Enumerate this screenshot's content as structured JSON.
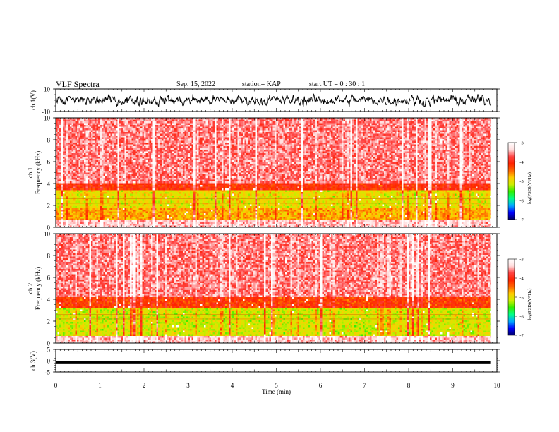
{
  "header": {
    "title": "VLF Spectra",
    "date": "Sep. 15, 2022",
    "station": "station= KAP",
    "start": "start  UT =  0 : 30 : 1"
  },
  "colors": {
    "spectrum_stops": [
      "#000066",
      "#0000ff",
      "#00aaff",
      "#00ff88",
      "#33ee00",
      "#ccee00",
      "#ffcc00",
      "#ff6600",
      "#ff2200",
      "#ff4444",
      "#ffdddd",
      "#ffffff"
    ],
    "trace": "#000000"
  },
  "chart_data": [
    {
      "type": "line",
      "panel": "ch1-waveform",
      "ylabel": "ch.1(V)",
      "ylim": [
        -10,
        10
      ],
      "y_ticks": [
        10,
        -10
      ],
      "x_range_min": [
        0,
        9.85
      ],
      "description_series": "noisy waveform roughly between -7 and +7 V"
    },
    {
      "type": "heatmap",
      "panel": "ch1-spectrogram",
      "ylabel": "ch.1",
      "ylabel2": "Frequency (kHz)",
      "ylim": [
        0,
        10
      ],
      "y_ticks": [
        0,
        2,
        4,
        6,
        8,
        10
      ],
      "x_range_min": [
        0,
        9.85
      ],
      "colorbar": {
        "label": "log(PSD)(V²/Hz)",
        "ticks": [
          -3,
          -4,
          -5,
          -6,
          -7
        ],
        "range": [
          -7,
          -3
        ]
      },
      "bands": [
        {
          "from_khz": 0.0,
          "to_khz": 0.6,
          "level": -3.4
        },
        {
          "from_khz": 0.6,
          "to_khz": 1.8,
          "level": -4.7
        },
        {
          "from_khz": 1.8,
          "to_khz": 3.4,
          "level": -5.0
        },
        {
          "from_khz": 3.4,
          "to_khz": 4.0,
          "level": -4.1
        },
        {
          "from_khz": 4.0,
          "to_khz": 10.0,
          "level": -3.6
        }
      ]
    },
    {
      "type": "heatmap",
      "panel": "ch2-spectrogram",
      "ylabel": "ch.2",
      "ylabel2": "Frequency (kHz)",
      "ylim": [
        0,
        10
      ],
      "y_ticks": [
        0,
        2,
        4,
        6,
        8,
        10
      ],
      "x_range_min": [
        0,
        9.85
      ],
      "colorbar": {
        "label": "log(PSD)(V²/Hz)",
        "ticks": [
          -3,
          -4,
          -5,
          -6,
          -7
        ],
        "range": [
          -7,
          -3
        ]
      },
      "bands": [
        {
          "from_khz": 0.0,
          "to_khz": 0.6,
          "level": -3.4
        },
        {
          "from_khz": 0.6,
          "to_khz": 3.2,
          "level": -5.1
        },
        {
          "from_khz": 3.2,
          "to_khz": 4.2,
          "level": -4.2
        },
        {
          "from_khz": 4.2,
          "to_khz": 10.0,
          "level": -3.6
        }
      ]
    },
    {
      "type": "line",
      "panel": "ch3-waveform",
      "ylabel": "ch.3(V)",
      "ylim": [
        -5,
        5
      ],
      "y_ticks": [
        5,
        0,
        -5
      ],
      "x_range_min": [
        0,
        9.85
      ],
      "level_band": [
        -1.2,
        -0.2
      ]
    }
  ],
  "xaxis": {
    "label": "Time (min)",
    "ticks": [
      0,
      1,
      2,
      3,
      4,
      5,
      6,
      7,
      8,
      9,
      10
    ],
    "range": [
      0,
      10
    ]
  }
}
